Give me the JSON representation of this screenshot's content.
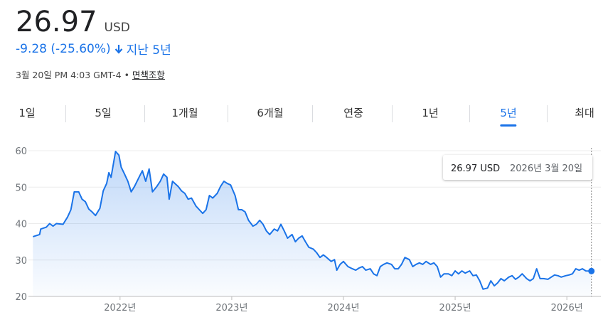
{
  "header": {
    "price": "26.97",
    "currency": "USD",
    "change": "-9.28 (-25.60%)",
    "period": "지난 5년",
    "timestamp": "3월 20일 PM 4:03 GMT-4",
    "separator": "•",
    "disclaimer": "면책조항"
  },
  "tabs": {
    "items": [
      "1일",
      "5일",
      "1개월",
      "6개월",
      "연중",
      "1년",
      "5년",
      "최대"
    ],
    "selected": 6
  },
  "chart_data": {
    "type": "line",
    "color": "#1a73e8",
    "grid": true,
    "x": [
      2021.22,
      2021.28,
      2021.29,
      2021.34,
      2021.37,
      2021.4,
      2021.43,
      2021.49,
      2021.53,
      2021.56,
      2021.59,
      2021.63,
      2021.66,
      2021.69,
      2021.72,
      2021.75,
      2021.78,
      2021.82,
      2021.85,
      2021.88,
      2021.9,
      2021.92,
      2021.96,
      2021.99,
      2022.01,
      2022.04,
      2022.07,
      2022.1,
      2022.13,
      2022.17,
      2022.2,
      2022.23,
      2022.26,
      2022.29,
      2022.33,
      2022.36,
      2022.39,
      2022.42,
      2022.44,
      2022.47,
      2022.52,
      2022.55,
      2022.58,
      2022.61,
      2022.64,
      2022.68,
      2022.71,
      2022.74,
      2022.77,
      2022.8,
      2022.83,
      2022.87,
      2022.9,
      2022.93,
      2022.96,
      2022.99,
      2023.03,
      2023.06,
      2023.09,
      2023.12,
      2023.15,
      2023.19,
      2023.22,
      2023.25,
      2023.28,
      2023.31,
      2023.34,
      2023.38,
      2023.41,
      2023.44,
      2023.47,
      2023.5,
      2023.54,
      2023.57,
      2023.6,
      2023.63,
      2023.66,
      2023.69,
      2023.73,
      2023.76,
      2023.79,
      2023.82,
      2023.85,
      2023.89,
      2023.92,
      2023.94,
      2023.97,
      2024.0,
      2024.04,
      2024.08,
      2024.11,
      2024.14,
      2024.17,
      2024.2,
      2024.24,
      2024.27,
      2024.3,
      2024.33,
      2024.36,
      2024.39,
      2024.43,
      2024.46,
      2024.49,
      2024.52,
      2024.55,
      2024.59,
      2024.62,
      2024.65,
      2024.68,
      2024.71,
      2024.74,
      2024.78,
      2024.81,
      2024.84,
      2024.87,
      2024.9,
      2024.94,
      2024.97,
      2025.0,
      2025.03,
      2025.06,
      2025.09,
      2025.13,
      2025.16,
      2025.19,
      2025.22,
      2025.25,
      2025.29,
      2025.32,
      2025.35,
      2025.38,
      2025.41,
      2025.44,
      2025.48,
      2025.51,
      2025.54,
      2025.57,
      2025.6,
      2025.64,
      2025.67,
      2025.7,
      2025.73,
      2025.76,
      2025.79,
      2025.83,
      2025.86,
      2025.89,
      2025.92,
      2025.95,
      2025.99,
      2026.02,
      2026.05,
      2026.08,
      2026.11,
      2026.14,
      2026.17,
      2026.22
    ],
    "values": [
      36.4,
      37,
      38.5,
      39,
      40,
      39.3,
      40,
      39.8,
      41.8,
      43.8,
      48.7,
      48.7,
      46.7,
      46,
      44,
      43.2,
      42.2,
      44.2,
      49,
      51,
      54,
      52.7,
      59.8,
      58.8,
      55.5,
      53.6,
      51.6,
      48.7,
      50.2,
      52.7,
      54.5,
      51.6,
      55,
      48.7,
      50.2,
      51.6,
      53.6,
      52.7,
      46.7,
      51.6,
      50.2,
      49,
      48.3,
      46.7,
      47,
      44.8,
      43.8,
      42.8,
      43.8,
      47.7,
      47,
      48.3,
      50.2,
      51.6,
      51,
      50.6,
      47.7,
      43.8,
      43.8,
      43.2,
      40.9,
      39.3,
      39.8,
      40.9,
      39.8,
      38,
      37,
      38.5,
      38,
      39.8,
      38,
      36,
      37,
      35,
      36,
      36.6,
      35,
      33.5,
      33,
      32,
      30.7,
      31.4,
      30.7,
      29.6,
      30.1,
      27.2,
      28.8,
      29.6,
      28.2,
      27.6,
      27.2,
      27.8,
      28.2,
      27.2,
      27.6,
      26.2,
      25.7,
      28.2,
      28.8,
      29.2,
      28.8,
      27.6,
      27.6,
      28.8,
      30.7,
      30.1,
      28.2,
      28.8,
      29.2,
      28.8,
      29.6,
      28.8,
      29.2,
      28.2,
      25.3,
      26.2,
      26.2,
      25.7,
      27,
      26.2,
      27,
      26.4,
      27,
      25.7,
      25.9,
      24.3,
      22,
      22.3,
      24.3,
      22.9,
      23.7,
      24.9,
      24.3,
      25.3,
      25.7,
      24.7,
      25.3,
      26.2,
      24.9,
      24.3,
      24.9,
      27.6,
      24.9,
      24.9,
      24.7,
      25.3,
      25.9,
      25.7,
      25.3,
      25.7,
      25.9,
      26.2,
      27.6,
      27.2,
      27.6,
      27,
      26.97
    ],
    "xlim": [
      2021.18,
      2026.26
    ],
    "xticks": [
      {
        "value": 2022,
        "label": "2022년"
      },
      {
        "value": 2023,
        "label": "2023년"
      },
      {
        "value": 2024,
        "label": "2024년"
      },
      {
        "value": 2025,
        "label": "2025년"
      },
      {
        "value": 2026,
        "label": "2026년"
      }
    ],
    "ylim": [
      20,
      60
    ],
    "yticks": [
      20,
      30,
      40,
      50,
      60
    ],
    "tooltip": {
      "value": "26.97 USD",
      "date": "2026년 3월 20일"
    }
  }
}
